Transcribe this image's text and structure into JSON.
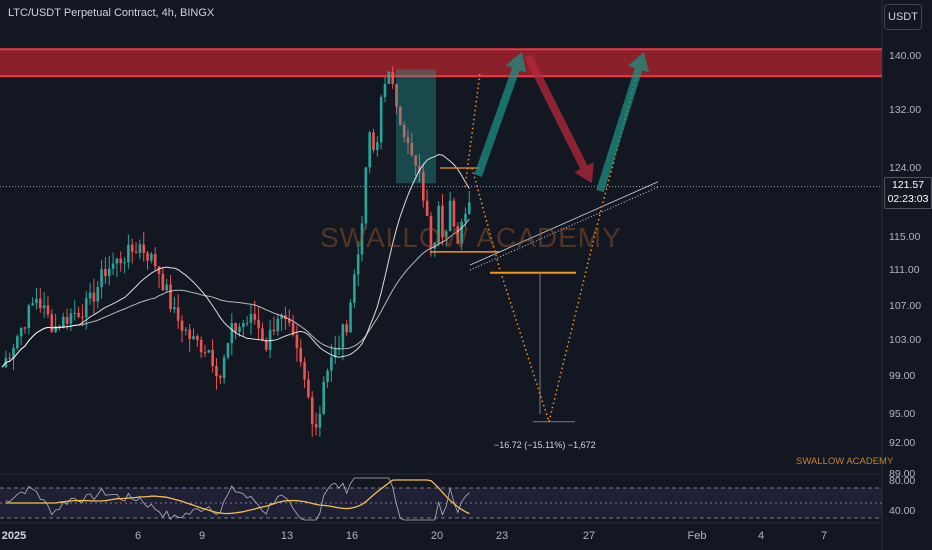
{
  "header": {
    "symbol_title": "LTC/USDT Perpetual Contract, 4h, BINGX",
    "currency_button": "USDT"
  },
  "price_axis": {
    "labels": [
      "140.00",
      "132.00",
      "124.00",
      "115.00",
      "111.00",
      "107.00",
      "103.00",
      "99.00",
      "95.00",
      "92.00",
      "89.00"
    ],
    "current_price": "121.57",
    "countdown": "02:23:03"
  },
  "oscillator_axis": {
    "labels": [
      "80.00",
      "40.00"
    ]
  },
  "time_axis": {
    "labels": [
      "2025",
      "6",
      "9",
      "13",
      "16",
      "20",
      "23",
      "27",
      "Feb",
      "4",
      "7"
    ]
  },
  "annotations": {
    "watermark": "SWALLOW ACADEMY",
    "watermark_small": "SWALLOW ACADEMY",
    "measure": "−16.72 (−15.11%) −1,672"
  },
  "colors": {
    "background": "#131722",
    "up_candle": "#26a69a",
    "down_candle": "#ef5350",
    "resistance_zone": "#b2242d",
    "projection_dots": "#f7931a",
    "moving_average": "#ffffff",
    "oscillator_line": "#f5c04a"
  },
  "chart_data": {
    "type": "candlestick",
    "symbol": "LTC/USDT",
    "interval": "4h",
    "y_range": [
      89,
      142
    ],
    "resistance_zone": [
      137,
      141
    ],
    "current_price": 121.57,
    "projected_target": 94.2,
    "measured_move": {
      "change": -16.72,
      "percent": -15.11
    },
    "close_path": [
      [
        0,
        100
      ],
      [
        3,
        104
      ],
      [
        6,
        108
      ],
      [
        9,
        104.5
      ],
      [
        12,
        106
      ],
      [
        15,
        107
      ],
      [
        18,
        111
      ],
      [
        21,
        112.5
      ],
      [
        24,
        114
      ],
      [
        27,
        111.5
      ],
      [
        30,
        106
      ],
      [
        33,
        103
      ],
      [
        36,
        102
      ],
      [
        38,
        99
      ],
      [
        40,
        104
      ],
      [
        42,
        105
      ],
      [
        44,
        105.5
      ],
      [
        46,
        102.5
      ],
      [
        48,
        106
      ],
      [
        50,
        104
      ],
      [
        52,
        100
      ],
      [
        54,
        95
      ],
      [
        55,
        93.5
      ],
      [
        56,
        99
      ],
      [
        58,
        101.5
      ],
      [
        60,
        105
      ],
      [
        62,
        113
      ],
      [
        63,
        120
      ],
      [
        64,
        129
      ],
      [
        65,
        124
      ],
      [
        66,
        134
      ],
      [
        67,
        138
      ],
      [
        68,
        135
      ],
      [
        69,
        132
      ],
      [
        70,
        129
      ],
      [
        71,
        126
      ],
      [
        72,
        124
      ],
      [
        73,
        122
      ],
      [
        74,
        117
      ],
      [
        75,
        113
      ],
      [
        76,
        120
      ],
      [
        77,
        114
      ],
      [
        78,
        119
      ],
      [
        79,
        114
      ],
      [
        80,
        117
      ],
      [
        81,
        120
      ]
    ]
  }
}
